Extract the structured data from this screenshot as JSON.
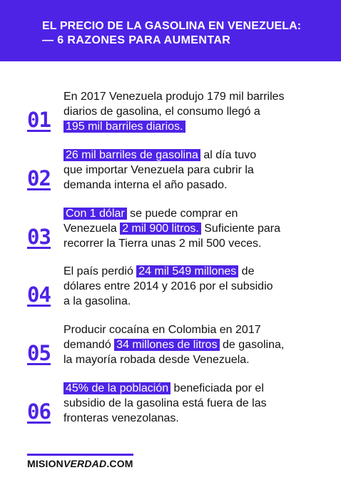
{
  "header": {
    "line1": "EL PRECIO DE LA GASOLINA EN VENEZUELA:",
    "line2": "— 6 RAZONES PARA AUMENTAR",
    "color": "#4e23e6"
  },
  "items": [
    {
      "number": "01",
      "l1": "En 2017 Venezuela produjo 179 mil barriles",
      "l2": "diarios de gasolina, el consumo llegó a",
      "l3_hl": "195 mil barriles diarios."
    },
    {
      "number": "02",
      "l1_hl": "26 mil barriles de gasolina",
      "l1_rest": " al día tuvo",
      "l2": "que importar Venezuela para cubrir la",
      "l3": "demanda interna el año pasado."
    },
    {
      "number": "03",
      "l1_hl": "Con 1 dólar",
      "l1_rest": " se puede comprar en",
      "l2_a": "Venezuela ",
      "l2_hl": "2 mil 900 litros.",
      "l2_b": " Suficiente para",
      "l3": "recorrer la Tierra unas 2 mil 500 veces."
    },
    {
      "number": "04",
      "l1_a": "El país perdió ",
      "l1_hl": "24 mil 549 millones",
      "l1_b": " de",
      "l2": "dólares entre 2014 y 2016 por el subsidio",
      "l3": "a la gasolina."
    },
    {
      "number": "05",
      "l1": "Producir cocaína en Colombia en 2017",
      "l2_a": "demandó ",
      "l2_hl": "34 millones de litros",
      "l2_b": " de gasolina,",
      "l3": "la mayoría robada desde Venezuela."
    },
    {
      "number": "06",
      "l1_hl": "45% de la población",
      "l1_rest": " beneficiada por el",
      "l2": "subsidio de la gasolina está fuera de las",
      "l3": "fronteras venezolanas."
    }
  ],
  "brand": {
    "part1": "MISION",
    "part2": "VERDAD",
    "part3": ".COM"
  }
}
